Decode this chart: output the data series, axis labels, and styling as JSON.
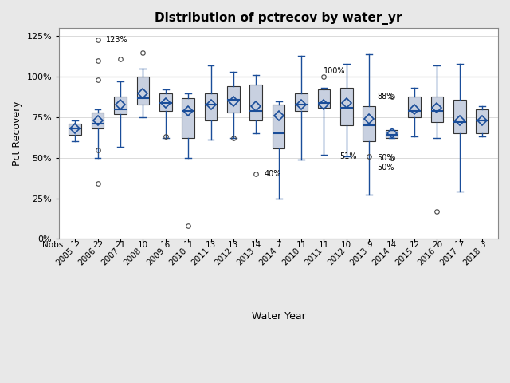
{
  "title": "Distribution of pctrecov by water_yr",
  "xlabel": "Water Year",
  "ylabel": "Pct Recovery",
  "years": [
    "2005",
    "2006",
    "2007",
    "2008",
    "2009",
    "2010",
    "2011",
    "2012",
    "2013",
    "2014",
    "2010",
    "2011",
    "2012",
    "2013",
    "2014",
    "2015",
    "2016",
    "2017",
    "2018"
  ],
  "nobs": [
    12,
    22,
    21,
    10,
    16,
    11,
    13,
    13,
    14,
    7,
    11,
    11,
    10,
    9,
    14,
    12,
    20,
    17,
    3
  ],
  "boxes": [
    {
      "q1": 64,
      "median": 68,
      "q3": 71,
      "whislo": 60,
      "whishi": 73,
      "mean": 68,
      "fliers": []
    },
    {
      "q1": 68,
      "median": 71,
      "q3": 78,
      "whislo": 50,
      "whishi": 80,
      "mean": 73,
      "fliers": [
        98,
        123,
        110,
        55,
        34
      ]
    },
    {
      "q1": 77,
      "median": 80,
      "q3": 88,
      "whislo": 57,
      "whishi": 97,
      "mean": 83,
      "fliers": [
        111
      ]
    },
    {
      "q1": 83,
      "median": 87,
      "q3": 100,
      "whislo": 75,
      "whishi": 105,
      "mean": 90,
      "fliers": [
        115
      ]
    },
    {
      "q1": 79,
      "median": 84,
      "q3": 90,
      "whislo": 62,
      "whishi": 92,
      "mean": 84,
      "fliers": [
        63
      ]
    },
    {
      "q1": 62,
      "median": 79,
      "q3": 87,
      "whislo": 50,
      "whishi": 90,
      "mean": 79,
      "fliers": [
        8
      ]
    },
    {
      "q1": 73,
      "median": 83,
      "q3": 90,
      "whislo": 61,
      "whishi": 107,
      "mean": 83,
      "fliers": []
    },
    {
      "q1": 78,
      "median": 86,
      "q3": 94,
      "whislo": 62,
      "whishi": 103,
      "mean": 85,
      "fliers": [
        62
      ]
    },
    {
      "q1": 73,
      "median": 79,
      "q3": 95,
      "whislo": 65,
      "whishi": 101,
      "mean": 82,
      "fliers": [
        40
      ]
    },
    {
      "q1": 56,
      "median": 65,
      "q3": 83,
      "whislo": 25,
      "whishi": 85,
      "mean": 76,
      "fliers": []
    },
    {
      "q1": 79,
      "median": 83,
      "q3": 90,
      "whislo": 49,
      "whishi": 113,
      "mean": 83,
      "fliers": []
    },
    {
      "q1": 81,
      "median": 84,
      "q3": 92,
      "whislo": 52,
      "whishi": 93,
      "mean": 83,
      "fliers": [
        100
      ]
    },
    {
      "q1": 70,
      "median": 81,
      "q3": 93,
      "whislo": 51,
      "whishi": 108,
      "mean": 84,
      "fliers": []
    },
    {
      "q1": 60,
      "median": 70,
      "q3": 82,
      "whislo": 27,
      "whishi": 114,
      "mean": 74,
      "fliers": [
        51
      ]
    },
    {
      "q1": 62,
      "median": 64,
      "q3": 67,
      "whislo": 62,
      "whishi": 67,
      "mean": 65,
      "fliers": [
        88,
        50,
        50
      ]
    },
    {
      "q1": 75,
      "median": 79,
      "q3": 88,
      "whislo": 63,
      "whishi": 93,
      "mean": 80,
      "fliers": []
    },
    {
      "q1": 72,
      "median": 79,
      "q3": 88,
      "whislo": 62,
      "whishi": 107,
      "mean": 81,
      "fliers": [
        17
      ]
    },
    {
      "q1": 65,
      "median": 72,
      "q3": 86,
      "whislo": 29,
      "whishi": 108,
      "mean": 73,
      "fliers": []
    },
    {
      "q1": 65,
      "median": 73,
      "q3": 80,
      "whislo": 63,
      "whishi": 82,
      "mean": 73,
      "fliers": []
    }
  ],
  "box_color": "#c8d0e0",
  "median_color": "#1a4d99",
  "whisker_color": "#1a4d99",
  "mean_color": "#1a4d99",
  "flier_edgecolor": "#444444",
  "reference_line": 100,
  "ylim": [
    0,
    130
  ],
  "yticks": [
    0,
    25,
    50,
    75,
    100,
    125
  ],
  "ytick_labels": [
    "0%",
    "25%",
    "50%",
    "75%",
    "100%",
    "125%"
  ],
  "background_color": "#e8e8e8",
  "plot_bg_color": "#ffffff"
}
